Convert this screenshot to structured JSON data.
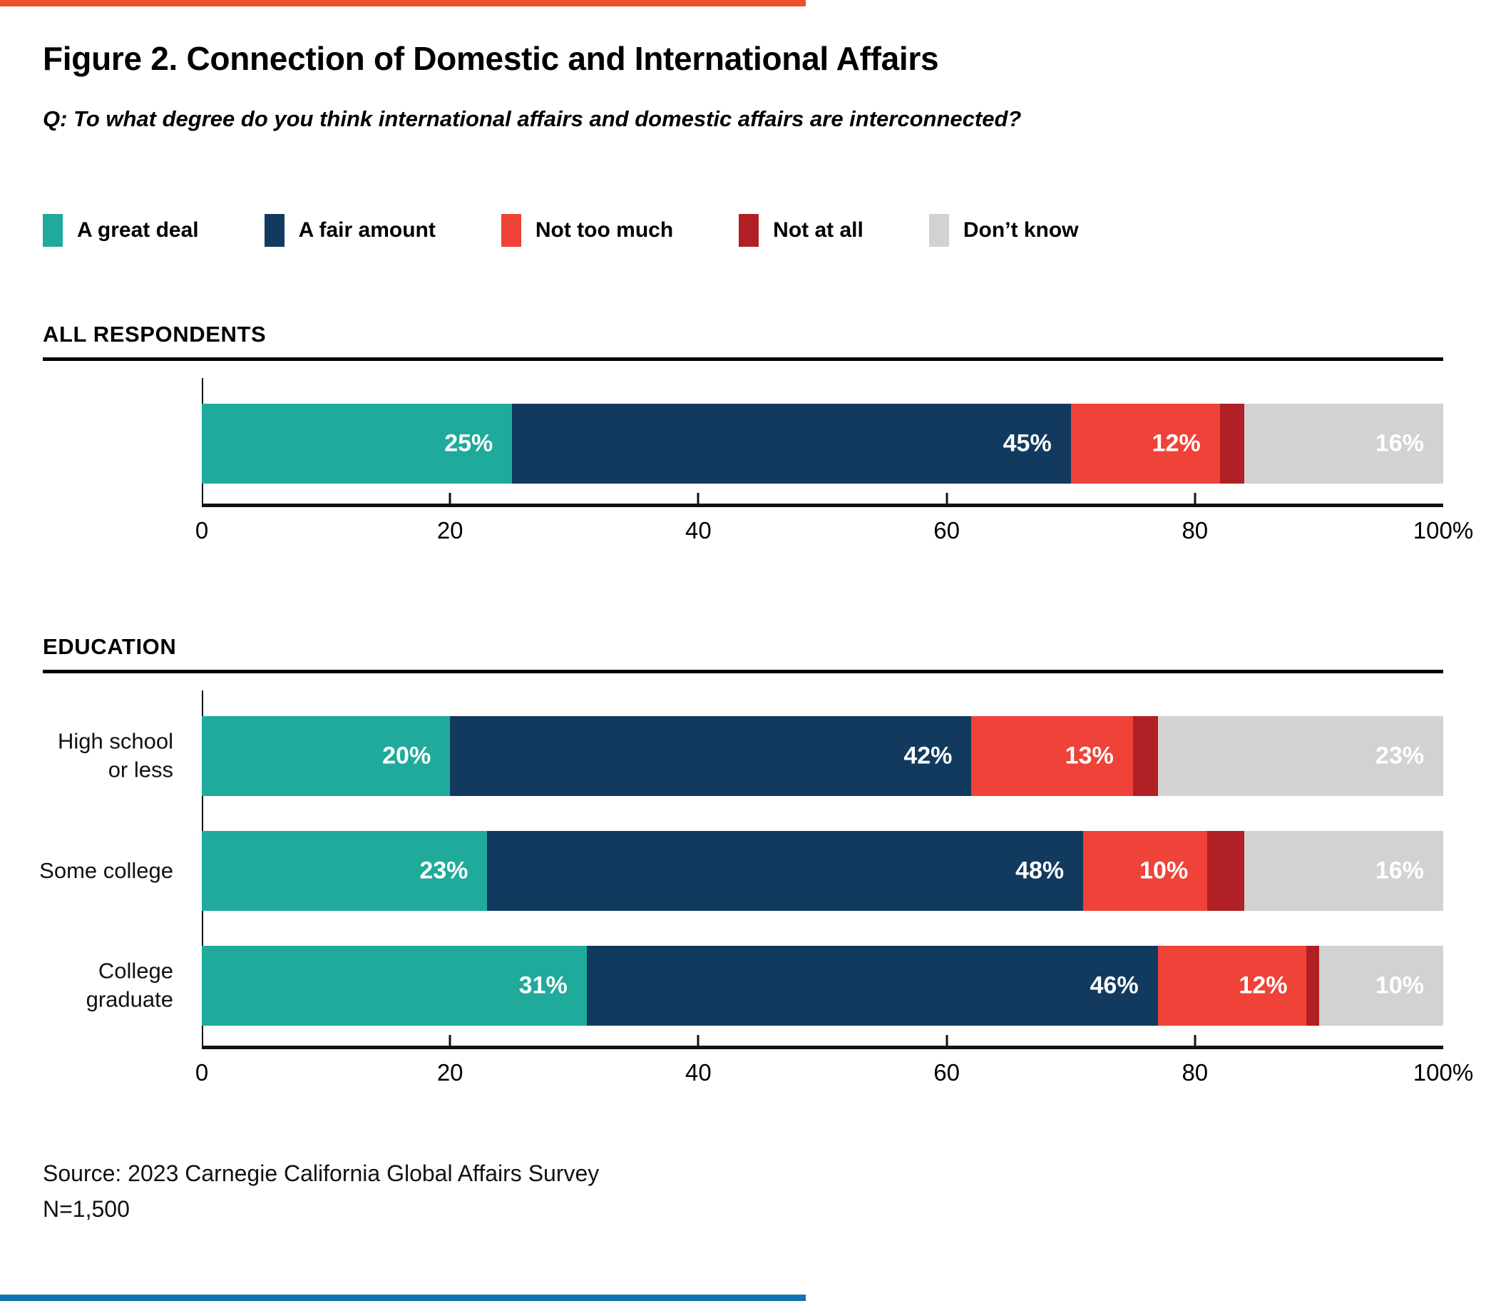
{
  "page": {
    "accent_top_color": "#F0502A",
    "accent_bottom_color": "#0E72B5"
  },
  "header": {
    "title": "Figure 2. Connection of Domestic and International Affairs",
    "question": "Q: To what degree do you think international affairs and domestic affairs are interconnected?"
  },
  "legend": {
    "items": [
      {
        "label": "A great deal",
        "color": "#1FAA9B"
      },
      {
        "label": "A fair amount",
        "color": "#123A5F"
      },
      {
        "label": "Not too much",
        "color": "#EF4238"
      },
      {
        "label": "Not at all",
        "color": "#B02025"
      },
      {
        "label": "Don’t know",
        "color": "#D2D2D3"
      }
    ]
  },
  "chart_data": [
    {
      "type": "bar",
      "orientation": "horizontal",
      "stacked": true,
      "section_title": "ALL RESPONDENTS",
      "categories": [
        ""
      ],
      "series": [
        {
          "name": "A great deal",
          "color": "#1FAA9B",
          "values": [
            25
          ],
          "show_labels": true
        },
        {
          "name": "A fair amount",
          "color": "#123A5F",
          "values": [
            45
          ],
          "show_labels": true
        },
        {
          "name": "Not too much",
          "color": "#EF4238",
          "values": [
            12
          ],
          "show_labels": true
        },
        {
          "name": "Not at all",
          "color": "#B02025",
          "values": [
            2
          ],
          "show_labels": false
        },
        {
          "name": "Don’t know",
          "color": "#D2D2D3",
          "values": [
            16
          ],
          "show_labels": true
        }
      ],
      "xlim": [
        0,
        100
      ],
      "ticks": [
        0,
        20,
        40,
        60,
        80,
        100
      ],
      "tick_labels": [
        "0",
        "20",
        "40",
        "60",
        "80",
        "100%"
      ],
      "grid": false,
      "legend_position": "top"
    },
    {
      "type": "bar",
      "orientation": "horizontal",
      "stacked": true,
      "section_title": "EDUCATION",
      "categories": [
        "High school\nor less",
        "Some college",
        "College\ngraduate"
      ],
      "series": [
        {
          "name": "A great deal",
          "color": "#1FAA9B",
          "values": [
            20,
            23,
            31
          ],
          "show_labels": true
        },
        {
          "name": "A fair amount",
          "color": "#123A5F",
          "values": [
            42,
            48,
            46
          ],
          "show_labels": true
        },
        {
          "name": "Not too much",
          "color": "#EF4238",
          "values": [
            13,
            10,
            12
          ],
          "show_labels": true
        },
        {
          "name": "Not at all",
          "color": "#B02025",
          "values": [
            2,
            3,
            1
          ],
          "show_labels": false
        },
        {
          "name": "Don’t know",
          "color": "#D2D2D3",
          "values": [
            23,
            16,
            10
          ],
          "show_labels": true
        }
      ],
      "xlim": [
        0,
        100
      ],
      "ticks": [
        0,
        20,
        40,
        60,
        80,
        100
      ],
      "tick_labels": [
        "0",
        "20",
        "40",
        "60",
        "80",
        "100%"
      ],
      "grid": false,
      "legend_position": "top"
    }
  ],
  "footer": {
    "source": "Source: 2023 Carnegie California Global Affairs Survey",
    "sample_size": "N=1,500"
  }
}
